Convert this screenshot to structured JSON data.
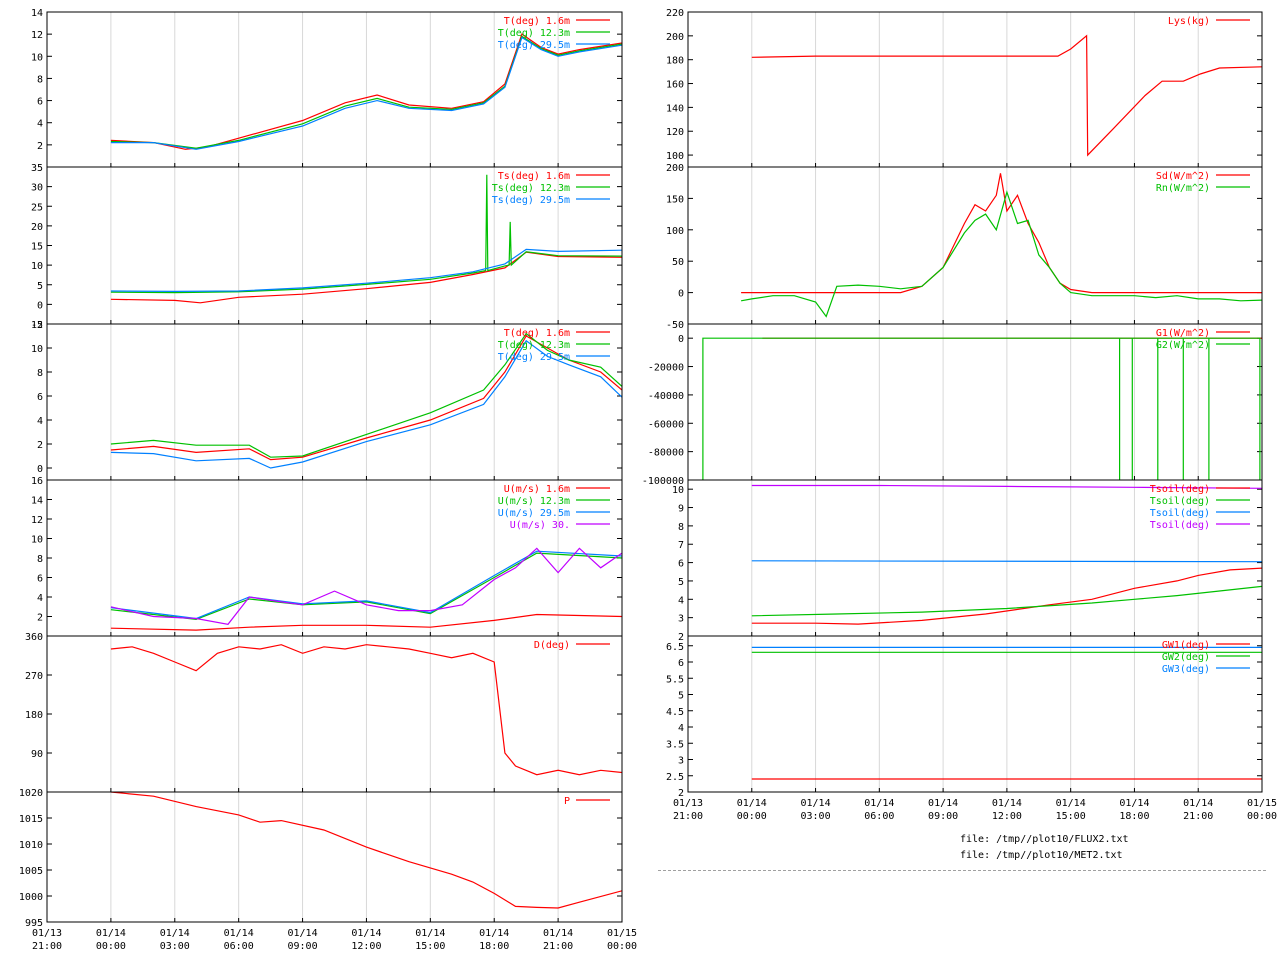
{
  "colors": {
    "red": "#ff0000",
    "green": "#00c000",
    "blue": "#0080ff",
    "purple": "#c000ff"
  },
  "x_axis": {
    "range_hours": [
      -3,
      24
    ],
    "ticks": [
      {
        "hour": -3,
        "date": "01/13",
        "time": "21:00"
      },
      {
        "hour": 0,
        "date": "01/14",
        "time": "00:00"
      },
      {
        "hour": 3,
        "date": "01/14",
        "time": "03:00"
      },
      {
        "hour": 6,
        "date": "01/14",
        "time": "06:00"
      },
      {
        "hour": 9,
        "date": "01/14",
        "time": "09:00"
      },
      {
        "hour": 12,
        "date": "01/14",
        "time": "12:00"
      },
      {
        "hour": 15,
        "date": "01/14",
        "time": "15:00"
      },
      {
        "hour": 18,
        "date": "01/14",
        "time": "18:00"
      },
      {
        "hour": 21,
        "date": "01/14",
        "time": "21:00"
      },
      {
        "hour": 24,
        "date": "01/15",
        "time": "00:00"
      }
    ]
  },
  "footer": {
    "file1": "file: /tmp//plot10/FLUX2.txt",
    "file2": "file: /tmp//plot10/MET2.txt"
  },
  "chart_data": [
    {
      "id": "air-temp",
      "type": "line",
      "column": "left",
      "ylim": [
        0,
        14
      ],
      "yticks": [
        2,
        4,
        6,
        8,
        10,
        12,
        14
      ],
      "series": [
        {
          "name": "T(deg)  1.6m",
          "color": "red",
          "x": [
            0,
            2,
            3.5,
            4.5,
            6,
            9,
            11,
            12.5,
            14,
            16,
            17.5,
            18.5,
            19.3,
            20.2,
            21,
            22,
            24
          ],
          "y": [
            2.4,
            2.2,
            1.6,
            1.8,
            2.6,
            4.2,
            5.8,
            6.5,
            5.6,
            5.3,
            5.9,
            7.5,
            12.0,
            10.8,
            10.2,
            10.6,
            11.2
          ]
        },
        {
          "name": "T(deg) 12.3m",
          "color": "green",
          "x": [
            0,
            2,
            4,
            6,
            9,
            11,
            12.5,
            14,
            16,
            17.5,
            18.5,
            19.3,
            20.2,
            21,
            22,
            24
          ],
          "y": [
            2.3,
            2.2,
            1.7,
            2.4,
            3.9,
            5.5,
            6.2,
            5.4,
            5.2,
            5.8,
            7.3,
            11.8,
            10.7,
            10.1,
            10.5,
            11.1
          ]
        },
        {
          "name": "T(deg) 29.5m",
          "color": "blue",
          "x": [
            0,
            2,
            4,
            6,
            9,
            11,
            12.5,
            14,
            16,
            17.5,
            18.5,
            19.3,
            20.2,
            21,
            22,
            24
          ],
          "y": [
            2.2,
            2.2,
            1.6,
            2.3,
            3.7,
            5.3,
            6.0,
            5.3,
            5.1,
            5.7,
            7.2,
            11.7,
            10.6,
            10.0,
            10.4,
            11.0
          ]
        }
      ]
    },
    {
      "id": "sonic-temp",
      "type": "line",
      "column": "left",
      "ylim": [
        -5,
        35
      ],
      "yticks": [
        -5,
        0,
        5,
        10,
        15,
        20,
        25,
        30,
        35
      ],
      "series": [
        {
          "name": "Ts(deg)  1.6m",
          "color": "red",
          "x": [
            0,
            3,
            4.2,
            6,
            9,
            12,
            15,
            17,
            18.5,
            19.5,
            21,
            24
          ],
          "y": [
            1.3,
            1.0,
            0.4,
            1.8,
            2.6,
            4.0,
            5.6,
            7.6,
            9.3,
            13.3,
            12.2,
            12.0
          ]
        },
        {
          "name": "Ts(deg) 12.3m",
          "color": "green",
          "x": [
            0,
            3,
            6,
            9,
            12,
            15,
            17,
            17.6,
            17.65,
            17.7,
            18.5,
            18.7,
            18.75,
            18.8,
            19.5,
            21,
            24
          ],
          "y": [
            3.1,
            3.0,
            3.2,
            3.9,
            5.1,
            6.4,
            8.0,
            8.6,
            33.0,
            8.6,
            9.8,
            10.0,
            21.0,
            10.0,
            13.4,
            12.4,
            12.3
          ]
        },
        {
          "name": "Ts(deg) 29.5m",
          "color": "blue",
          "x": [
            0,
            3,
            6,
            9,
            12,
            15,
            17,
            18.5,
            19.5,
            21,
            24
          ],
          "y": [
            3.4,
            3.3,
            3.4,
            4.2,
            5.4,
            6.8,
            8.3,
            10.3,
            14.0,
            13.5,
            13.8
          ]
        }
      ]
    },
    {
      "id": "temp-profile",
      "type": "line",
      "column": "left",
      "ylim": [
        -1,
        12
      ],
      "yticks": [
        0,
        2,
        4,
        6,
        8,
        10,
        12
      ],
      "series": [
        {
          "name": "T(deg)  1.6m",
          "color": "red",
          "x": [
            0,
            2,
            4,
            6.5,
            7.5,
            9,
            12,
            15,
            17.5,
            18.5,
            19.5,
            20.5,
            21.5,
            23,
            24
          ],
          "y": [
            1.5,
            1.8,
            1.3,
            1.6,
            0.7,
            0.9,
            2.5,
            4.0,
            5.8,
            8.0,
            11.0,
            10.0,
            9.0,
            8.0,
            6.5
          ]
        },
        {
          "name": "T(deg) 12.3m",
          "color": "green",
          "x": [
            0,
            2,
            4,
            6.5,
            7.5,
            9,
            12,
            15,
            17.5,
            18.5,
            19.5,
            20.5,
            21.5,
            23,
            24
          ],
          "y": [
            2.0,
            2.3,
            1.9,
            1.9,
            0.9,
            1.0,
            2.8,
            4.6,
            6.5,
            8.6,
            11.2,
            9.8,
            9.0,
            8.4,
            6.8
          ]
        },
        {
          "name": "T(deg) 29.5m",
          "color": "blue",
          "x": [
            0,
            2,
            4,
            6.5,
            7.5,
            9,
            12,
            15,
            17.5,
            18.5,
            19.5,
            20.5,
            21.5,
            23,
            24
          ],
          "y": [
            1.3,
            1.2,
            0.6,
            0.8,
            0.0,
            0.5,
            2.2,
            3.6,
            5.3,
            7.6,
            10.6,
            9.3,
            8.6,
            7.6,
            5.9
          ]
        }
      ]
    },
    {
      "id": "wind-speed",
      "type": "line",
      "column": "left",
      "ylim": [
        0,
        16
      ],
      "yticks": [
        2,
        4,
        6,
        8,
        10,
        12,
        14,
        16
      ],
      "series": [
        {
          "name": "U(m/s)  1.6m",
          "color": "red",
          "x": [
            0,
            4,
            6.5,
            9,
            12,
            15,
            18,
            20,
            24
          ],
          "y": [
            0.8,
            0.6,
            0.9,
            1.1,
            1.1,
            0.9,
            1.6,
            2.2,
            2.0
          ]
        },
        {
          "name": "U(m/s) 12.3m",
          "color": "green",
          "x": [
            0,
            4,
            6.5,
            9,
            12,
            15,
            18,
            20,
            24
          ],
          "y": [
            2.7,
            1.7,
            3.8,
            3.2,
            3.5,
            2.3,
            6.0,
            8.5,
            8.0
          ]
        },
        {
          "name": "U(m/s) 29.5m",
          "color": "blue",
          "x": [
            0,
            4,
            6.5,
            9,
            12,
            15,
            18,
            20,
            24
          ],
          "y": [
            2.9,
            1.8,
            4.0,
            3.3,
            3.6,
            2.4,
            6.2,
            8.7,
            8.2
          ]
        },
        {
          "name": "U(m/s) 30.",
          "color": "purple",
          "x": [
            0,
            2,
            4,
            5.5,
            6.5,
            8,
            9,
            10.5,
            12,
            13.5,
            15,
            16.5,
            18,
            19,
            20,
            21,
            22,
            23,
            24
          ],
          "y": [
            3.0,
            2.0,
            1.8,
            1.2,
            4.0,
            3.5,
            3.2,
            4.6,
            3.2,
            2.6,
            2.6,
            3.2,
            5.8,
            7.0,
            9.0,
            6.5,
            9.0,
            7.0,
            8.5
          ]
        }
      ]
    },
    {
      "id": "wind-direction",
      "type": "line",
      "column": "left",
      "ylim": [
        0,
        360
      ],
      "yticks": [
        90,
        180,
        270,
        360
      ],
      "series": [
        {
          "name": "D(deg)",
          "color": "red",
          "x": [
            0,
            1,
            2,
            3,
            4,
            5,
            6,
            7,
            8,
            9,
            10,
            11,
            12,
            13,
            14,
            15,
            16,
            17,
            18,
            18.5,
            19,
            20,
            21,
            22,
            23,
            24
          ],
          "y": [
            330,
            335,
            320,
            300,
            280,
            320,
            335,
            330,
            340,
            320,
            335,
            330,
            340,
            335,
            330,
            320,
            310,
            320,
            300,
            90,
            60,
            40,
            50,
            40,
            50,
            45
          ]
        }
      ]
    },
    {
      "id": "pressure",
      "type": "line",
      "column": "left",
      "ylim": [
        995,
        1020
      ],
      "yticks": [
        995,
        1000,
        1005,
        1010,
        1015,
        1020
      ],
      "series": [
        {
          "name": "P",
          "color": "red",
          "x": [
            0,
            2,
            4,
            6,
            7,
            8,
            10,
            12,
            14,
            16,
            17,
            18,
            19,
            20,
            21,
            22,
            24
          ],
          "y": [
            1020,
            1019.2,
            1017.2,
            1015.6,
            1014.2,
            1014.5,
            1012.7,
            1009.4,
            1006.6,
            1004.2,
            1002.7,
            1000.5,
            998.0,
            997.8,
            997.7,
            998.8,
            1001.0
          ]
        }
      ]
    },
    {
      "id": "lysimeter",
      "type": "line",
      "column": "right",
      "ylim": [
        90,
        220
      ],
      "yticks": [
        100,
        120,
        140,
        160,
        180,
        200,
        220
      ],
      "series": [
        {
          "name": "Lys(kg)",
          "color": "red",
          "x": [
            0,
            3,
            9,
            14.4,
            15,
            15.75,
            15.8,
            17,
            18.5,
            19.3,
            20.3,
            21.1,
            22,
            24
          ],
          "y": [
            182,
            183,
            183,
            183,
            189,
            200,
            100,
            122,
            150,
            162,
            162,
            168,
            173,
            174
          ]
        }
      ]
    },
    {
      "id": "radiation",
      "type": "line",
      "column": "right",
      "ylim": [
        -50,
        200
      ],
      "yticks": [
        -50,
        0,
        50,
        100,
        150,
        200
      ],
      "series": [
        {
          "name": "Sd(W/m^2)",
          "color": "red",
          "x": [
            -0.5,
            7,
            8,
            9,
            10,
            10.5,
            11,
            11.5,
            11.7,
            12,
            12.5,
            13,
            13.5,
            14,
            14.5,
            15,
            16,
            24
          ],
          "y": [
            0,
            0,
            10,
            40,
            110,
            140,
            130,
            155,
            190,
            130,
            155,
            110,
            80,
            40,
            15,
            5,
            0,
            0
          ]
        },
        {
          "name": "Rn(W/m^2)",
          "color": "green",
          "x": [
            -0.5,
            0,
            1,
            2,
            3,
            3.5,
            4,
            5,
            6,
            7,
            8,
            9,
            10,
            10.5,
            11,
            11.5,
            12,
            12.5,
            13,
            13.5,
            14,
            14.5,
            15,
            16,
            17,
            18,
            19,
            20,
            21,
            22,
            23,
            24
          ],
          "y": [
            -13,
            -10,
            -5,
            -5,
            -15,
            -38,
            10,
            12,
            10,
            6,
            10,
            40,
            95,
            115,
            125,
            100,
            160,
            110,
            115,
            60,
            40,
            15,
            0,
            -5,
            -5,
            -5,
            -8,
            -5,
            -10,
            -10,
            -13,
            -12
          ]
        }
      ]
    },
    {
      "id": "ground-heat",
      "type": "line",
      "column": "right",
      "ylim": [
        -100000,
        10000
      ],
      "yticks": [
        -100000,
        -80000,
        -60000,
        -40000,
        -20000,
        0
      ],
      "series": [
        {
          "name": "G1(W/m^2)",
          "color": "red",
          "x": [
            0.5,
            24
          ],
          "y": [
            0,
            0
          ]
        },
        {
          "name": "G2(W/m^2)",
          "color": "green",
          "x": [
            -2.3,
            -2.3,
            -2.3,
            17.3,
            17.3,
            17.3,
            17.9,
            17.9,
            17.9,
            19.1,
            19.1,
            19.1,
            20.3,
            20.3,
            20.3,
            21.5,
            21.5,
            21.5,
            23.9,
            23.9,
            23.9
          ],
          "y": [
            0,
            -100000,
            0,
            0,
            -100000,
            0,
            0,
            -100000,
            0,
            0,
            -100000,
            0,
            0,
            -100000,
            0,
            0,
            -100000,
            0,
            0,
            -100000,
            0
          ]
        }
      ]
    },
    {
      "id": "soil-temp",
      "type": "line",
      "column": "right",
      "ylim": [
        2,
        10.5
      ],
      "yticks": [
        2,
        3,
        4,
        5,
        6,
        7,
        8,
        9,
        10
      ],
      "series": [
        {
          "name": "Tsoil(deg)",
          "color": "red",
          "x": [
            0,
            3,
            5,
            8,
            11,
            14,
            16,
            18,
            20,
            21,
            22.5,
            24
          ],
          "y": [
            2.7,
            2.7,
            2.65,
            2.85,
            3.2,
            3.7,
            4.0,
            4.6,
            5.0,
            5.3,
            5.6,
            5.7
          ]
        },
        {
          "name": "Tsoil(deg)",
          "color": "green",
          "x": [
            0,
            4,
            8,
            12,
            16,
            18,
            20,
            22,
            24
          ],
          "y": [
            3.1,
            3.2,
            3.3,
            3.5,
            3.8,
            4.0,
            4.2,
            4.45,
            4.7
          ]
        },
        {
          "name": "Tsoil(deg)",
          "color": "blue",
          "x": [
            0,
            24
          ],
          "y": [
            6.1,
            6.05
          ]
        },
        {
          "name": "Tsoil(deg)",
          "color": "purple",
          "x": [
            0,
            6,
            12,
            18,
            24
          ],
          "y": [
            10.2,
            10.2,
            10.15,
            10.1,
            10.05
          ]
        }
      ]
    },
    {
      "id": "groundwater",
      "type": "line",
      "column": "right",
      "ylim": [
        2,
        6.8
      ],
      "yticks": [
        2,
        2.5,
        3,
        3.5,
        4,
        4.5,
        5,
        5.5,
        6,
        6.5
      ],
      "series": [
        {
          "name": "GW1(deg)",
          "color": "red",
          "x": [
            0,
            24
          ],
          "y": [
            2.4,
            2.4
          ]
        },
        {
          "name": "GW2(deg)",
          "color": "green",
          "x": [
            0,
            24
          ],
          "y": [
            6.3,
            6.3
          ]
        },
        {
          "name": "GW3(deg)",
          "color": "blue",
          "x": [
            0,
            24
          ],
          "y": [
            6.45,
            6.45
          ]
        }
      ]
    }
  ]
}
